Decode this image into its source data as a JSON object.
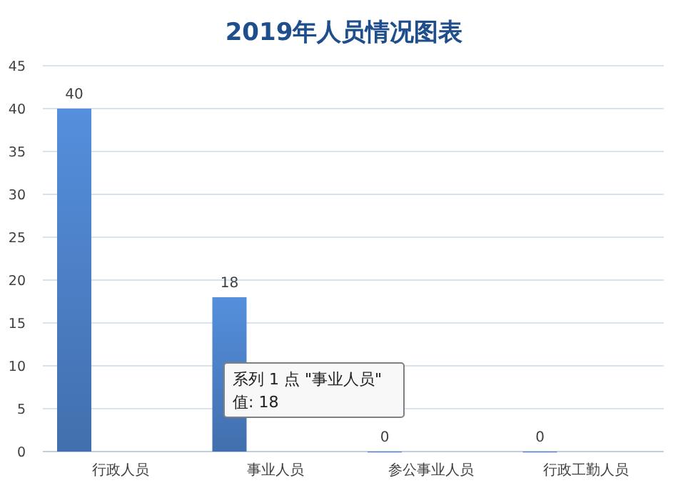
{
  "chart_data": {
    "type": "bar",
    "title": "2019年人员情况图表",
    "categories": [
      "行政人员",
      "事业人员",
      "参公事业人员",
      "行政工勤人员"
    ],
    "values": [
      40,
      18,
      0,
      0
    ],
    "color": "#4a7cc0",
    "ylim": [
      0,
      45
    ],
    "yticks": [
      0,
      5,
      10,
      15,
      20,
      25,
      30,
      35,
      40,
      45
    ],
    "grid": "y",
    "data_labels": true,
    "annotations": [
      "系列 1 点 \"事业人员\"",
      "值: 18"
    ]
  }
}
